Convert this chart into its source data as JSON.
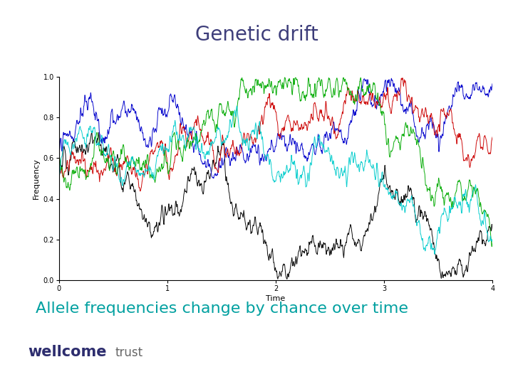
{
  "title": "Genetic drift",
  "title_color": "#3d3d7a",
  "title_fontsize": 20,
  "subtitle": "Allele frequencies change by chance over time",
  "subtitle_color": "#00a0a0",
  "subtitle_fontsize": 16,
  "xlabel": "Time",
  "ylabel": "Frequency",
  "xlim": [
    0,
    4
  ],
  "ylim": [
    0.0,
    1.0
  ],
  "xticks": [
    0,
    1,
    2,
    3,
    4
  ],
  "yticks": [
    0.0,
    0.2,
    0.4,
    0.6,
    0.8,
    1.0
  ],
  "line_colors": [
    "#000000",
    "#0000cc",
    "#cc0000",
    "#00aa00",
    "#00cccc"
  ],
  "n_points": 2000,
  "random_seed": 42,
  "background_color": "#ffffff",
  "wellcome_color": "#2d2d6e",
  "wellcome_trust_color": "#666666"
}
